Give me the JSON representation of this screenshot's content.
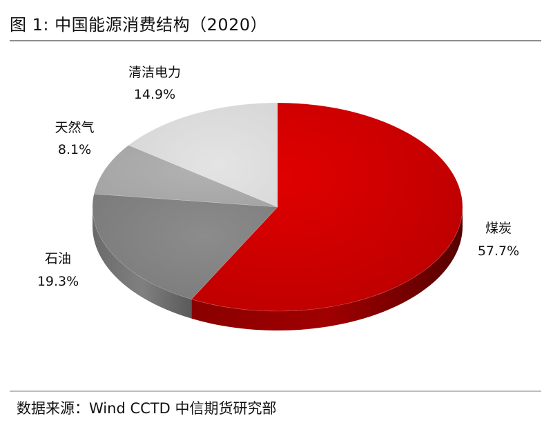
{
  "figure": {
    "title": "图 1:  中国能源消费结构（2020）",
    "source": "数据来源：Wind CCTD 中信期货研究部"
  },
  "chart_data": {
    "type": "pie",
    "style": "3d",
    "slices": [
      {
        "label": "煤炭",
        "value": 57.7,
        "value_text": "57.7%",
        "color": "#c00000"
      },
      {
        "label": "石油",
        "value": 19.3,
        "value_text": "19.3%",
        "color": "#7f7f7f"
      },
      {
        "label": "天然气",
        "value": 8.1,
        "value_text": "8.1%",
        "color": "#a5a5a5"
      },
      {
        "label": "清洁电力",
        "value": 14.9,
        "value_text": "14.9%",
        "color": "#d9d9d9"
      }
    ],
    "start": "12 o'clock",
    "direction": "clockwise",
    "legend": "none",
    "labels": "category and percent beside each slice"
  }
}
